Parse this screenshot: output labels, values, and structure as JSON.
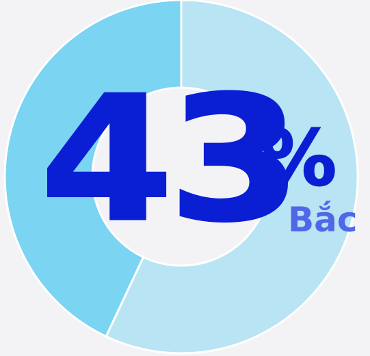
{
  "chart_data": {
    "type": "pie",
    "style": "donut",
    "slices": [
      {
        "value": 43,
        "color": "#7ad4f2"
      },
      {
        "value": 57,
        "color": "#b8e4f4"
      }
    ],
    "center_value": "43",
    "center_unit": "%",
    "center_label": "Bắc"
  },
  "colors": {
    "background": "#f3f3f5",
    "number": "#0a1fd4",
    "label": "#4f68e8",
    "slice_border": "#ffffff"
  }
}
